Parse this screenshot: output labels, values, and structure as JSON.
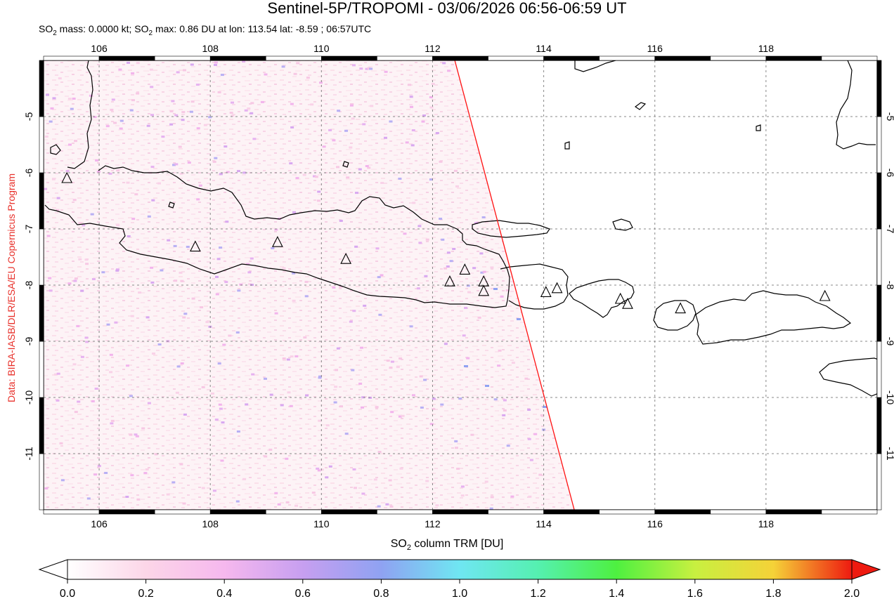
{
  "header": {
    "title": "Sentinel-5P/TROPOMI - 03/06/2026 06:56-06:59 UT",
    "so2_mass_label": "SO",
    "so2_mass_sub": "2",
    "so2_mass_text": " mass: 0.0000 kt; SO",
    "so2_max_sub": "2",
    "so2_max_text": " max: 0.86 DU at lon: 113.54 lat: -8.59 ; 06:57UTC"
  },
  "credit": "Data: BIRA-IASB/DLR/ESA/EU Copernicus Program",
  "map": {
    "lon_range": [
      105,
      120
    ],
    "lat_range": [
      -12,
      -4
    ],
    "lon_ticks": [
      "106",
      "108",
      "110",
      "112",
      "114",
      "116",
      "118"
    ],
    "lat_ticks": [
      "-5",
      "-6",
      "-7",
      "-8",
      "-9",
      "-10",
      "-11"
    ],
    "lon_tick_values": [
      106,
      108,
      110,
      112,
      114,
      116,
      118
    ],
    "lat_tick_values": [
      -5,
      -6,
      -7,
      -8,
      -9,
      -10,
      -11
    ],
    "volcanoes": [
      {
        "lon": 105.42,
        "lat": -6.1
      },
      {
        "lon": 107.73,
        "lat": -7.32
      },
      {
        "lon": 109.21,
        "lat": -7.24
      },
      {
        "lon": 110.44,
        "lat": -7.54
      },
      {
        "lon": 112.31,
        "lat": -7.94
      },
      {
        "lon": 112.58,
        "lat": -7.73
      },
      {
        "lon": 112.92,
        "lat": -7.94
      },
      {
        "lon": 112.92,
        "lat": -8.11
      },
      {
        "lon": 114.04,
        "lat": -8.13
      },
      {
        "lon": 114.24,
        "lat": -8.06
      },
      {
        "lon": 115.38,
        "lat": -8.25
      },
      {
        "lon": 115.51,
        "lat": -8.34
      },
      {
        "lon": 116.46,
        "lat": -8.42
      },
      {
        "lon": 119.06,
        "lat": -8.2
      }
    ],
    "swath_edge": [
      [
        112.4,
        -4.0
      ],
      [
        114.55,
        -12.0
      ]
    ]
  },
  "colorbar": {
    "label": "SO",
    "label_sub": "2",
    "label_rest": " column TRM [DU]",
    "ticks": [
      "0.0",
      "0.2",
      "0.4",
      "0.6",
      "0.8",
      "1.0",
      "1.2",
      "1.4",
      "1.6",
      "1.8",
      "2.0"
    ],
    "tick_values": [
      0.0,
      0.2,
      0.4,
      0.6,
      0.8,
      1.0,
      1.2,
      1.4,
      1.6,
      1.8,
      2.0
    ],
    "min": 0.0,
    "max": 2.0,
    "colors": [
      "#ffffff",
      "#fcd6e8",
      "#f6b8ee",
      "#c79ff0",
      "#8fa2f2",
      "#6fe6f2",
      "#55f0b0",
      "#4ef040",
      "#c8f040",
      "#f5d238",
      "#f06020",
      "#ee1a10"
    ]
  }
}
